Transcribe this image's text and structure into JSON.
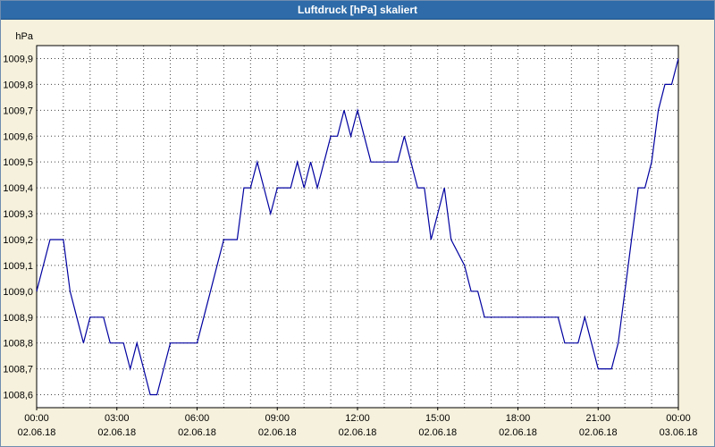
{
  "title": "Luftdruck [hPa] skaliert",
  "colors": {
    "title_bar_bg": "#2e6ba8",
    "title_text": "#ffffff",
    "page_bg": "#f6f1dc",
    "plot_bg": "#ffffff",
    "grid": "#444444",
    "axis": "#000000",
    "line": "#0000a0"
  },
  "chart_data": {
    "type": "line",
    "title": "Luftdruck [hPa] skaliert",
    "ylabel": "hPa",
    "xlabel": "",
    "unit_label": "hPa",
    "grid": "dotted; vertical every hour, horizontal every 0.1 hPa",
    "legend_position": "none",
    "x_range_hours": [
      0,
      24
    ],
    "y_range": [
      1008.55,
      1009.95
    ],
    "y_ticks": [
      {
        "value": 1009.9,
        "label": "1009,9"
      },
      {
        "value": 1009.8,
        "label": "1009,8"
      },
      {
        "value": 1009.7,
        "label": "1009,7"
      },
      {
        "value": 1009.6,
        "label": "1009,6"
      },
      {
        "value": 1009.5,
        "label": "1009,5"
      },
      {
        "value": 1009.4,
        "label": "1009,4"
      },
      {
        "value": 1009.3,
        "label": "1009,3"
      },
      {
        "value": 1009.2,
        "label": "1009,2"
      },
      {
        "value": 1009.1,
        "label": "1009,1"
      },
      {
        "value": 1009.0,
        "label": "1009,0"
      },
      {
        "value": 1008.9,
        "label": "1008,9"
      },
      {
        "value": 1008.8,
        "label": "1008,8"
      },
      {
        "value": 1008.7,
        "label": "1008,7"
      },
      {
        "value": 1008.6,
        "label": "1008,6"
      }
    ],
    "x_ticks": [
      {
        "hour": 0,
        "time": "00:00",
        "date": "02.06.18"
      },
      {
        "hour": 3,
        "time": "03:00",
        "date": "02.06.18"
      },
      {
        "hour": 6,
        "time": "06:00",
        "date": "02.06.18"
      },
      {
        "hour": 9,
        "time": "09:00",
        "date": "02.06.18"
      },
      {
        "hour": 12,
        "time": "12:00",
        "date": "02.06.18"
      },
      {
        "hour": 15,
        "time": "15:00",
        "date": "02.06.18"
      },
      {
        "hour": 18,
        "time": "18:00",
        "date": "02.06.18"
      },
      {
        "hour": 21,
        "time": "21:00",
        "date": "02.06.18"
      },
      {
        "hour": 24,
        "time": "00:00",
        "date": "03.06.18"
      }
    ],
    "series": [
      {
        "name": "Luftdruck",
        "color": "#0000a0",
        "points": [
          [
            0.0,
            1009.0
          ],
          [
            0.25,
            1009.1
          ],
          [
            0.5,
            1009.2
          ],
          [
            1.0,
            1009.2
          ],
          [
            1.25,
            1009.0
          ],
          [
            1.5,
            1008.9
          ],
          [
            1.75,
            1008.8
          ],
          [
            2.0,
            1008.9
          ],
          [
            2.5,
            1008.9
          ],
          [
            2.75,
            1008.8
          ],
          [
            3.25,
            1008.8
          ],
          [
            3.5,
            1008.7
          ],
          [
            3.75,
            1008.8
          ],
          [
            4.0,
            1008.7
          ],
          [
            4.25,
            1008.6
          ],
          [
            4.5,
            1008.6
          ],
          [
            4.75,
            1008.7
          ],
          [
            5.0,
            1008.8
          ],
          [
            6.0,
            1008.8
          ],
          [
            6.25,
            1008.9
          ],
          [
            6.5,
            1009.0
          ],
          [
            6.75,
            1009.1
          ],
          [
            7.0,
            1009.2
          ],
          [
            7.5,
            1009.2
          ],
          [
            7.75,
            1009.4
          ],
          [
            8.0,
            1009.4
          ],
          [
            8.25,
            1009.5
          ],
          [
            8.5,
            1009.4
          ],
          [
            8.75,
            1009.3
          ],
          [
            9.0,
            1009.4
          ],
          [
            9.5,
            1009.4
          ],
          [
            9.75,
            1009.5
          ],
          [
            10.0,
            1009.4
          ],
          [
            10.25,
            1009.5
          ],
          [
            10.5,
            1009.4
          ],
          [
            10.75,
            1009.5
          ],
          [
            11.0,
            1009.6
          ],
          [
            11.25,
            1009.6
          ],
          [
            11.5,
            1009.7
          ],
          [
            11.75,
            1009.6
          ],
          [
            12.0,
            1009.7
          ],
          [
            12.25,
            1009.6
          ],
          [
            12.5,
            1009.5
          ],
          [
            13.5,
            1009.5
          ],
          [
            13.75,
            1009.6
          ],
          [
            14.0,
            1009.5
          ],
          [
            14.25,
            1009.4
          ],
          [
            14.5,
            1009.4
          ],
          [
            14.75,
            1009.2
          ],
          [
            15.0,
            1009.3
          ],
          [
            15.25,
            1009.4
          ],
          [
            15.5,
            1009.2
          ],
          [
            16.0,
            1009.1
          ],
          [
            16.25,
            1009.0
          ],
          [
            16.5,
            1009.0
          ],
          [
            16.75,
            1008.9
          ],
          [
            17.0,
            1008.9
          ],
          [
            19.5,
            1008.9
          ],
          [
            19.75,
            1008.8
          ],
          [
            20.25,
            1008.8
          ],
          [
            20.5,
            1008.9
          ],
          [
            20.75,
            1008.8
          ],
          [
            21.0,
            1008.7
          ],
          [
            21.5,
            1008.7
          ],
          [
            21.75,
            1008.8
          ],
          [
            22.0,
            1009.0
          ],
          [
            22.25,
            1009.2
          ],
          [
            22.5,
            1009.4
          ],
          [
            22.75,
            1009.4
          ],
          [
            23.0,
            1009.5
          ],
          [
            23.25,
            1009.7
          ],
          [
            23.5,
            1009.8
          ],
          [
            23.75,
            1009.8
          ],
          [
            24.0,
            1009.9
          ]
        ]
      }
    ]
  }
}
